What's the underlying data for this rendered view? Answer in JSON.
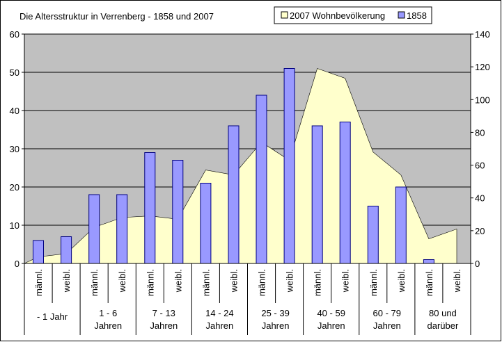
{
  "chart_data": {
    "type": "bar",
    "title": "Die Altersstruktur in Verrenberg - 1858 und 2007",
    "legend_placement": "top-right",
    "grid": true,
    "colors": {
      "plot_background": "#c0c0c0",
      "bar_fill": "#9999ff",
      "bar_stroke": "#000080",
      "area_fill": "#ffffcc",
      "gridline": "#000000"
    },
    "y_left": {
      "min": 0,
      "max": 60,
      "ticks": [
        0,
        10,
        20,
        30,
        40,
        50,
        60
      ]
    },
    "y_right": {
      "min": 0,
      "max": 140,
      "ticks": [
        0,
        20,
        40,
        60,
        80,
        100,
        120,
        140
      ]
    },
    "sub_categories": [
      "männl.",
      "weibl.",
      "männl.",
      "weibl.",
      "männl.",
      "weibl.",
      "männl.",
      "weibl.",
      "männl.",
      "weibl.",
      "männl.",
      "weibl.",
      "männl.",
      "weibl.",
      "männl.",
      "weibl."
    ],
    "groups": [
      [
        "- 1 Jahr"
      ],
      [
        "1 - 6",
        "Jahren"
      ],
      [
        "7 - 13",
        "Jahren"
      ],
      [
        "14 - 24",
        "Jahren"
      ],
      [
        "25 - 39",
        "Jahren"
      ],
      [
        "40 - 59",
        "Jahren"
      ],
      [
        "60 - 79",
        "Jahren"
      ],
      [
        "80 und",
        "darüber"
      ]
    ],
    "series": [
      {
        "name": "2007 Wohnbevölkerung",
        "type": "area",
        "axis": "right",
        "values": [
          4,
          6,
          22,
          28,
          29,
          27,
          57,
          54,
          74,
          63,
          119,
          113,
          68,
          54,
          15,
          21
        ]
      },
      {
        "name": "1858",
        "type": "bar",
        "axis": "left",
        "values": [
          6,
          7,
          18,
          18,
          29,
          27,
          21,
          36,
          44,
          51,
          36,
          37,
          15,
          20,
          1,
          0
        ]
      }
    ]
  }
}
